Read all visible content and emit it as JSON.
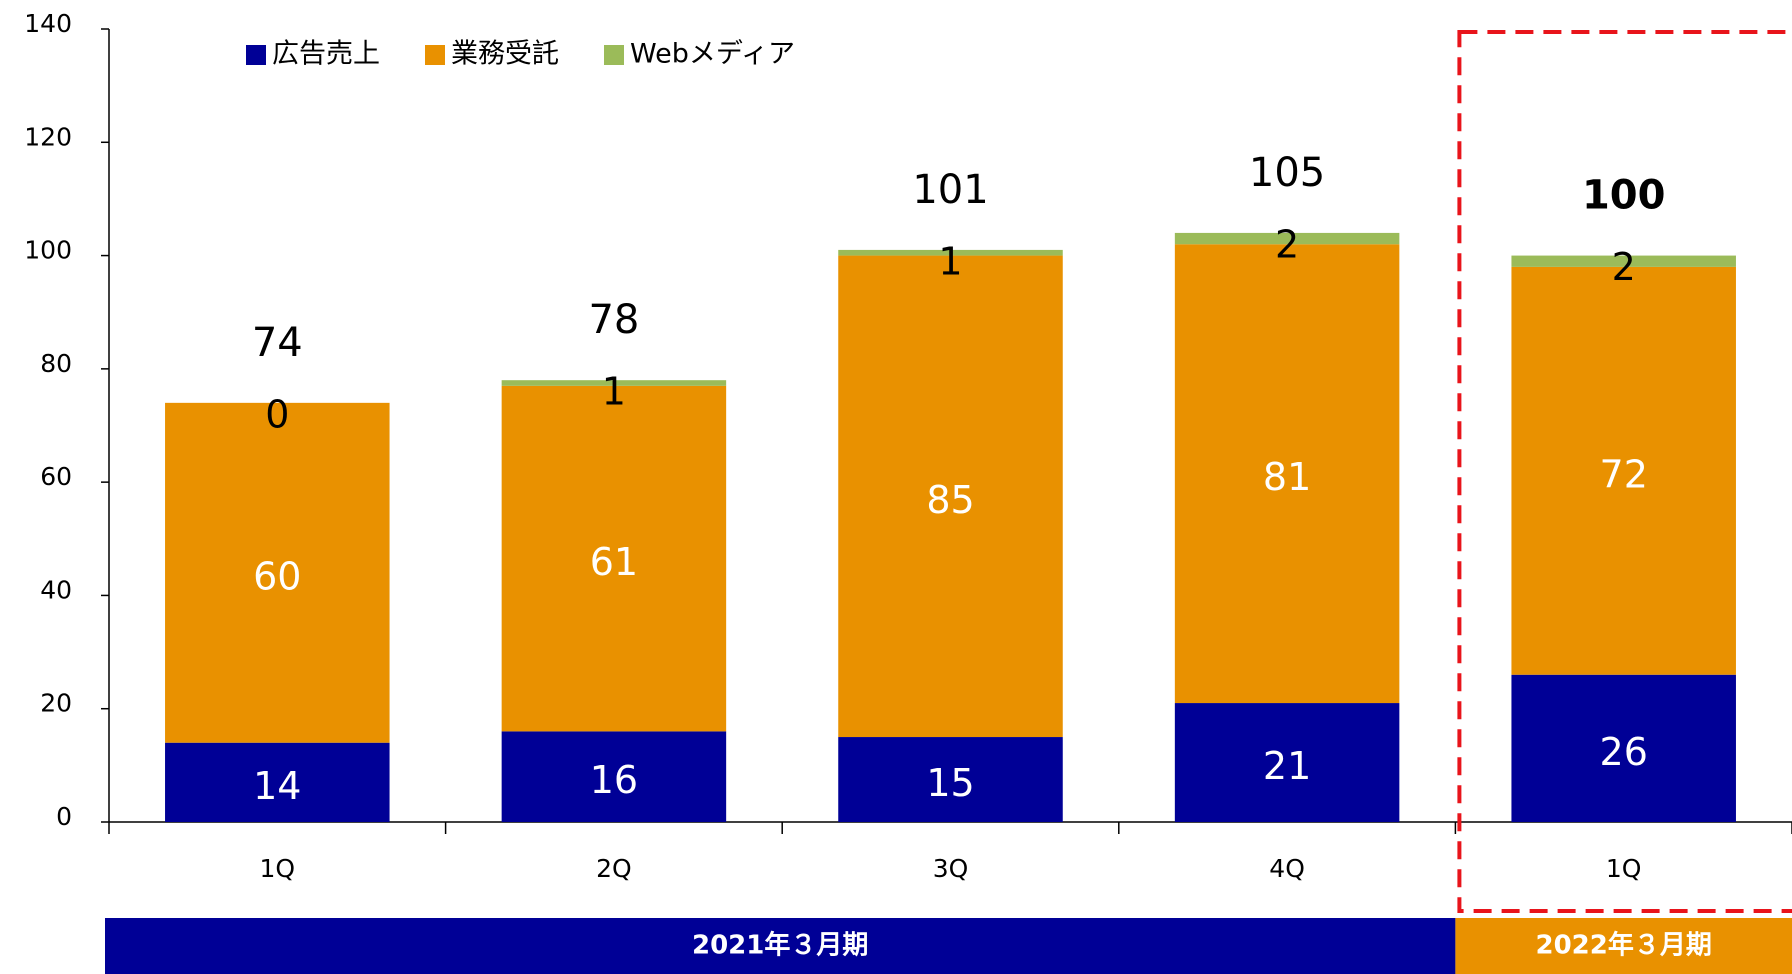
{
  "chart_data": {
    "type": "stacked_bar",
    "categories": [
      "1Q",
      "2Q",
      "3Q",
      "4Q",
      "1Q"
    ],
    "series": [
      {
        "name": "広告売上",
        "color": "#000096",
        "values": [
          14,
          16,
          15,
          21,
          26
        ]
      },
      {
        "name": "業務受託",
        "color": "#E99100",
        "values": [
          60,
          61,
          85,
          81,
          72
        ]
      },
      {
        "name": "Webメディア",
        "color": "#9BBB59",
        "values": [
          0,
          1,
          1,
          2,
          2
        ]
      }
    ],
    "totals": [
      74,
      78,
      101,
      105,
      100
    ],
    "ylim": [
      0,
      140
    ],
    "yticks": [
      0,
      20,
      40,
      60,
      80,
      100,
      120,
      140
    ],
    "periods": [
      {
        "label": "2021年３月期",
        "span": 4,
        "color": "#000096"
      },
      {
        "label": "2022年３月期",
        "span": 1,
        "color": "#E99100"
      }
    ]
  }
}
